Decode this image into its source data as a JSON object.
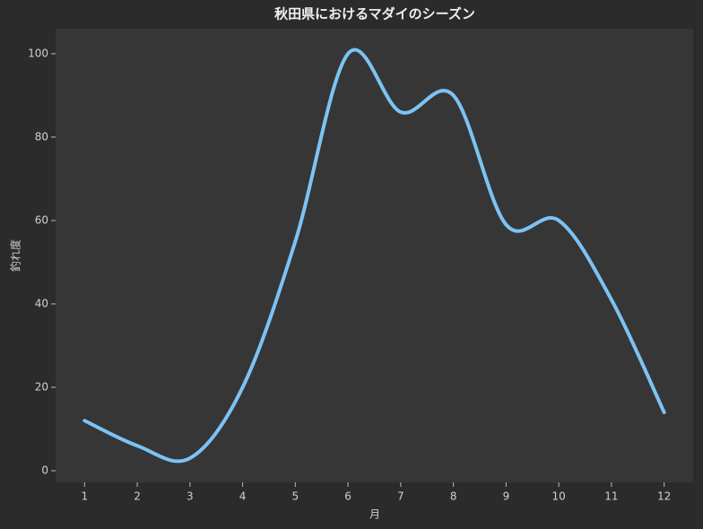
{
  "chart_data": {
    "type": "line",
    "title": "秋田県におけるマダイのシーズン",
    "x_label": "月",
    "y_label": "釣れ度",
    "x": [
      1,
      2,
      3,
      4,
      5,
      6,
      7,
      8,
      9,
      10,
      11,
      12
    ],
    "series": [
      {
        "name": "釣れ度",
        "color": "#7cc3f4",
        "values": [
          12,
          6,
          3,
          20,
          55,
          100,
          86,
          90,
          59,
          60,
          41,
          14
        ]
      }
    ],
    "xlim": [
      0.45,
      12.55
    ],
    "xticks": [
      1,
      2,
      3,
      4,
      5,
      6,
      7,
      8,
      9,
      10,
      11,
      12
    ],
    "ylim": [
      -2.8,
      106
    ],
    "yticks": [
      0,
      20,
      40,
      60,
      80,
      100
    ],
    "grid": false
  }
}
